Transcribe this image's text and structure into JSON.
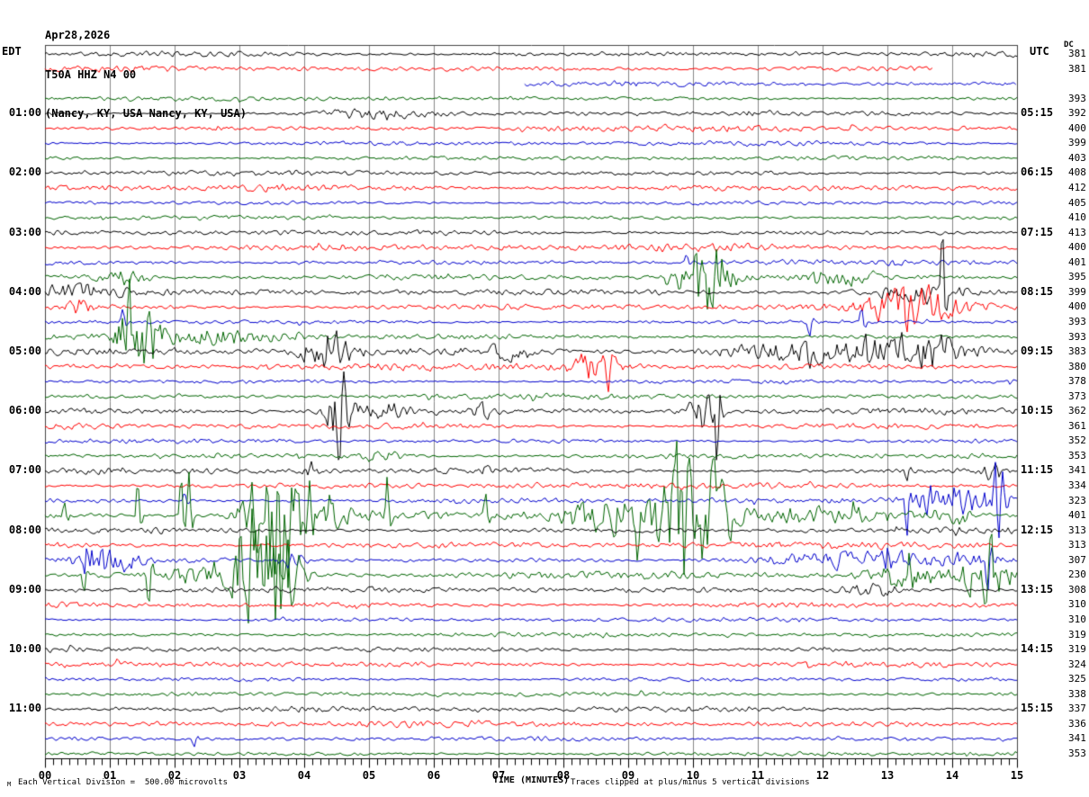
{
  "title": {
    "date": "Apr28,2026",
    "station": "T50A HHZ N4 00",
    "location": "(Nancy, KY, USA Nancy, KY, USA)"
  },
  "axes": {
    "left_label": "EDT",
    "right_label": "UTC",
    "dc_label": "DC",
    "x_title": "TIME (MINUTES)"
  },
  "footer": {
    "unit_mark": "M",
    "left_note": "Each Vertical Division =  500.00 microvolts",
    "right_note": "Traces clipped at plus/minus 5 vertical divisions"
  },
  "chart_data": {
    "type": "line",
    "subtype": "helicorder-seismogram",
    "minutes_per_row": 15,
    "clip_divisions": 5,
    "microvolts_per_division": 500.0,
    "x_ticks": [
      "00",
      "01",
      "02",
      "03",
      "04",
      "05",
      "06",
      "07",
      "08",
      "09",
      "10",
      "11",
      "12",
      "13",
      "14",
      "15"
    ],
    "palette": {
      "black": "#000000",
      "red": "#ff0000",
      "blue": "#0000cd",
      "green": "#006400",
      "grid": "#888888",
      "frame": "#444444"
    },
    "rows": [
      {
        "dc": "381",
        "color": "black",
        "amp": 3,
        "events": []
      },
      {
        "dc": "381",
        "color": "red",
        "amp": 3.5,
        "end": 13.7,
        "events": []
      },
      {
        "dc": "",
        "color": "blue",
        "amp": 3,
        "start": 7.4,
        "events": []
      },
      {
        "dc": "393",
        "color": "green",
        "amp": 2.5,
        "events": []
      },
      {
        "dc": "392",
        "color": "black",
        "amp": 2.5,
        "edt": "01:00",
        "utc": "05:15",
        "events": [
          {
            "t": 5.1,
            "w": 0.5,
            "a": 5
          }
        ]
      },
      {
        "dc": "400",
        "color": "red",
        "amp": 3.5,
        "events": []
      },
      {
        "dc": "399",
        "color": "blue",
        "amp": 2.5,
        "events": []
      },
      {
        "dc": "403",
        "color": "green",
        "amp": 2.5,
        "events": []
      },
      {
        "dc": "408",
        "color": "black",
        "amp": 3,
        "edt": "02:00",
        "utc": "06:15",
        "events": []
      },
      {
        "dc": "412",
        "color": "red",
        "amp": 4,
        "events": []
      },
      {
        "dc": "405",
        "color": "blue",
        "amp": 2.5,
        "events": []
      },
      {
        "dc": "410",
        "color": "green",
        "amp": 2.5,
        "events": []
      },
      {
        "dc": "413",
        "color": "black",
        "amp": 3,
        "edt": "03:00",
        "utc": "07:15",
        "events": []
      },
      {
        "dc": "400",
        "color": "red",
        "amp": 4,
        "events": []
      },
      {
        "dc": "401",
        "color": "blue",
        "amp": 3,
        "events": [
          {
            "t": 9.9,
            "a": 10,
            "w": 0.05,
            "s": 1
          }
        ]
      },
      {
        "dc": "395",
        "color": "green",
        "amp": 3,
        "events": [
          {
            "t": 1.2,
            "a": 7,
            "w": 0.3
          },
          {
            "t": 9.6,
            "a": 12,
            "w": 0.05,
            "s": -1
          },
          {
            "t": 10.2,
            "a": 50,
            "w": 0.25
          },
          {
            "t": 12.2,
            "a": 9,
            "w": 0.3
          }
        ]
      },
      {
        "dc": "399",
        "color": "black",
        "amp": 3.5,
        "edt": "04:00",
        "utc": "08:15",
        "events": [
          {
            "t": 0.4,
            "a": 7,
            "w": 0.5
          },
          {
            "t": 13.5,
            "a": 10,
            "w": 0.5
          },
          {
            "t": 13.85,
            "a": 85,
            "w": 0.05,
            "s": 1
          }
        ]
      },
      {
        "dc": "400",
        "color": "red",
        "amp": 3.5,
        "events": [
          {
            "t": 0.5,
            "a": 13,
            "w": 0.12
          },
          {
            "t": 13.4,
            "a": 22,
            "w": 0.5
          },
          {
            "t": 13.3,
            "a": 40,
            "w": 0.05,
            "s": -1
          }
        ]
      },
      {
        "dc": "393",
        "color": "blue",
        "amp": 2.5,
        "events": [
          {
            "t": 1.2,
            "a": 17,
            "w": 0.05,
            "s": 1
          },
          {
            "t": 11.8,
            "a": 18,
            "w": 0.05,
            "s": -1
          },
          {
            "t": 12.6,
            "a": 20,
            "w": 0.06,
            "s": 1
          }
        ]
      },
      {
        "dc": "393",
        "color": "green",
        "amp": 3,
        "events": [
          {
            "t": 1.3,
            "a": 45,
            "w": 0.12
          },
          {
            "t": 1.55,
            "a": 30,
            "w": 0.2
          },
          {
            "t": 2.5,
            "a": 9,
            "w": 0.8
          }
        ]
      },
      {
        "dc": "383",
        "color": "black",
        "amp": 4,
        "edt": "05:00",
        "utc": "09:15",
        "events": [
          {
            "t": 4.35,
            "a": 22,
            "w": 0.25
          },
          {
            "t": 7.15,
            "a": 11,
            "w": 0.2
          },
          {
            "t": 12.3,
            "a": 13,
            "w": 1.2
          },
          {
            "t": 12.65,
            "a": 28,
            "w": 0.05,
            "s": 1
          },
          {
            "t": 13.6,
            "a": 18,
            "w": 0.3
          }
        ]
      },
      {
        "dc": "380",
        "color": "red",
        "amp": 3.5,
        "events": [
          {
            "t": 8.45,
            "a": 16,
            "w": 0.3
          },
          {
            "t": 8.7,
            "a": 32,
            "w": 0.05,
            "s": -1
          }
        ]
      },
      {
        "dc": "378",
        "color": "blue",
        "amp": 2.5,
        "events": []
      },
      {
        "dc": "373",
        "color": "green",
        "amp": 3,
        "events": []
      },
      {
        "dc": "362",
        "color": "black",
        "amp": 3.5,
        "edt": "06:00",
        "utc": "10:15",
        "events": [
          {
            "t": 4.52,
            "a": 60,
            "w": 0.1
          },
          {
            "t": 5.0,
            "a": 12,
            "w": 0.4
          },
          {
            "t": 6.75,
            "a": 11,
            "w": 0.1
          },
          {
            "t": 10.15,
            "a": 22,
            "w": 0.2
          },
          {
            "t": 10.37,
            "a": 70,
            "w": 0.04,
            "s": -1
          }
        ]
      },
      {
        "dc": "361",
        "color": "red",
        "amp": 3.5,
        "events": []
      },
      {
        "dc": "352",
        "color": "blue",
        "amp": 2.5,
        "events": []
      },
      {
        "dc": "353",
        "color": "green",
        "amp": 3,
        "events": [
          {
            "t": 5.2,
            "a": 7,
            "w": 0.25
          }
        ]
      },
      {
        "dc": "341",
        "color": "black",
        "amp": 3.5,
        "edt": "07:00",
        "utc": "11:15",
        "events": [
          {
            "t": 4.1,
            "a": 8,
            "w": 0.08
          },
          {
            "t": 13.3,
            "a": 14,
            "w": 0.05,
            "s": -1
          },
          {
            "t": 14.6,
            "a": 10,
            "w": 0.1
          }
        ]
      },
      {
        "dc": "334",
        "color": "red",
        "amp": 3.5,
        "events": []
      },
      {
        "dc": "323",
        "color": "blue",
        "amp": 3,
        "events": [
          {
            "t": 2.15,
            "a": 10,
            "w": 0.04,
            "s": 1
          },
          {
            "t": 13.3,
            "a": 40,
            "w": 0.06,
            "s": -1
          },
          {
            "t": 13.95,
            "a": 20,
            "w": 0.3
          },
          {
            "t": 14.7,
            "a": 45,
            "w": 0.1
          }
        ]
      },
      {
        "dc": "401",
        "color": "green",
        "amp": 5,
        "events": [
          {
            "t": 0.3,
            "a": 16,
            "w": 0.05,
            "s": 1
          },
          {
            "t": 1.43,
            "a": 45,
            "w": 0.04,
            "s": 1
          },
          {
            "t": 2.1,
            "a": 50,
            "w": 0.04,
            "s": 1
          },
          {
            "t": 2.22,
            "a": 50,
            "w": 0.04,
            "s": 1
          },
          {
            "t": 3.55,
            "a": 80,
            "w": 0.3
          },
          {
            "t": 4.2,
            "a": 25,
            "w": 0.3
          },
          {
            "t": 5.28,
            "a": 48,
            "w": 0.04,
            "s": 1
          },
          {
            "t": 6.8,
            "a": 30,
            "w": 0.05,
            "s": 1
          },
          {
            "t": 8.6,
            "a": 25,
            "w": 0.4
          },
          {
            "t": 9.15,
            "a": 55,
            "w": 0.08,
            "s": -1
          },
          {
            "t": 9.85,
            "a": 80,
            "w": 0.3
          },
          {
            "t": 10.4,
            "a": 40,
            "w": 0.15
          },
          {
            "t": 12.0,
            "a": 5,
            "w": 1.0
          },
          {
            "t": 14.1,
            "a": 12,
            "w": 0.1
          }
        ]
      },
      {
        "dc": "313",
        "color": "black",
        "amp": 3.5,
        "edt": "08:00",
        "utc": "12:15",
        "events": []
      },
      {
        "dc": "313",
        "color": "red",
        "amp": 4,
        "events": []
      },
      {
        "dc": "307",
        "color": "blue",
        "amp": 3,
        "events": [
          {
            "t": 0.7,
            "a": 14,
            "w": 0.1
          },
          {
            "t": 1.0,
            "a": 16,
            "w": 0.3
          },
          {
            "t": 3.8,
            "a": 8,
            "w": 0.15
          },
          {
            "t": 12.8,
            "a": 9,
            "w": 1.2
          },
          {
            "t": 14.55,
            "a": 40,
            "w": 0.05,
            "s": -1
          }
        ]
      },
      {
        "dc": "230",
        "color": "green",
        "amp": 4,
        "events": [
          {
            "t": 0.6,
            "a": 22,
            "w": 0.06,
            "s": -1
          },
          {
            "t": 1.6,
            "a": 40,
            "w": 0.06,
            "s": -1
          },
          {
            "t": 2.4,
            "a": 10,
            "w": 0.4
          },
          {
            "t": 3.3,
            "a": 70,
            "w": 0.25
          },
          {
            "t": 3.75,
            "a": 30,
            "w": 0.2
          },
          {
            "t": 13.3,
            "a": 12,
            "w": 0.4
          },
          {
            "t": 14.4,
            "a": 30,
            "w": 0.15
          },
          {
            "t": 14.6,
            "a": 55,
            "w": 0.04,
            "s": 1
          },
          {
            "t": 14.7,
            "a": 14,
            "w": 0.3
          }
        ]
      },
      {
        "dc": "308",
        "color": "black",
        "amp": 3.5,
        "edt": "09:00",
        "utc": "13:15",
        "events": [
          {
            "t": 12.8,
            "a": 8,
            "w": 0.3
          }
        ]
      },
      {
        "dc": "310",
        "color": "red",
        "amp": 3.5,
        "events": []
      },
      {
        "dc": "310",
        "color": "blue",
        "amp": 2.5,
        "events": []
      },
      {
        "dc": "319",
        "color": "green",
        "amp": 2.5,
        "events": []
      },
      {
        "dc": "319",
        "color": "black",
        "amp": 3,
        "edt": "10:00",
        "utc": "14:15",
        "events": []
      },
      {
        "dc": "324",
        "color": "red",
        "amp": 3.5,
        "events": []
      },
      {
        "dc": "325",
        "color": "blue",
        "amp": 2.5,
        "events": []
      },
      {
        "dc": "338",
        "color": "green",
        "amp": 2.5,
        "events": []
      },
      {
        "dc": "337",
        "color": "black",
        "amp": 3,
        "edt": "11:00",
        "utc": "15:15",
        "events": []
      },
      {
        "dc": "336",
        "color": "red",
        "amp": 3.5,
        "events": []
      },
      {
        "dc": "341",
        "color": "blue",
        "amp": 2.5,
        "events": [
          {
            "t": 2.3,
            "a": 10,
            "w": 0.04,
            "s": -1
          }
        ]
      },
      {
        "dc": "353",
        "color": "green",
        "amp": 2.5,
        "events": []
      }
    ]
  }
}
